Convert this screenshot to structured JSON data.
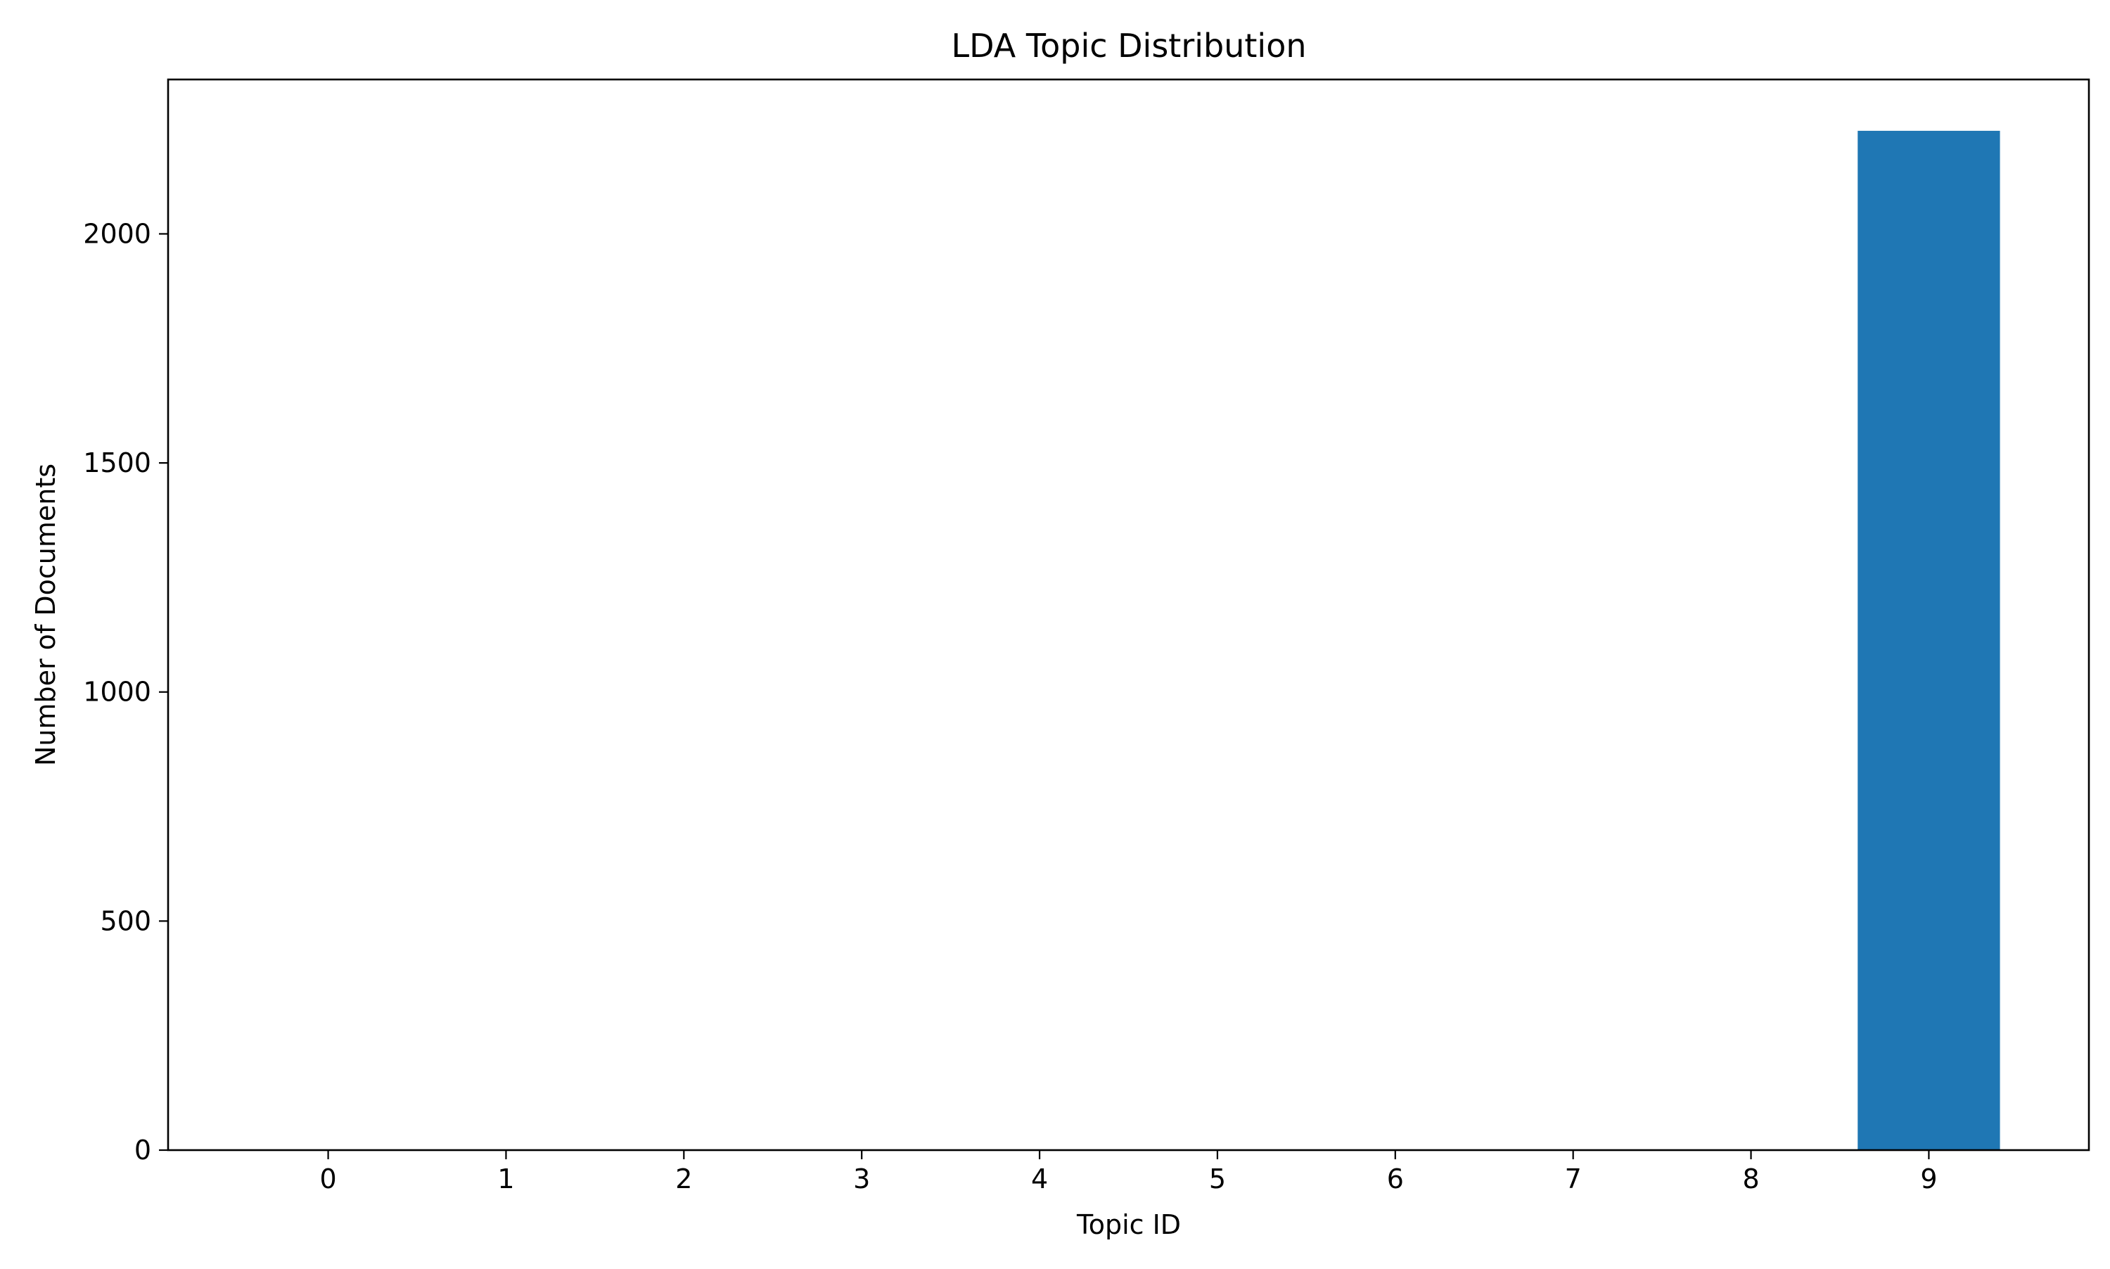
{
  "chart_data": {
    "type": "bar",
    "title": "LDA Topic Distribution",
    "xlabel": "Topic ID",
    "ylabel": "Number of Documents",
    "categories": [
      "0",
      "1",
      "2",
      "3",
      "4",
      "5",
      "6",
      "7",
      "8",
      "9"
    ],
    "values": [
      0,
      0,
      0,
      0,
      0,
      0,
      0,
      0,
      0,
      2225
    ],
    "ylim": [
      0,
      2337
    ],
    "yticks": [
      0,
      500,
      1000,
      1500,
      2000
    ],
    "bar_color": "#1f77b4",
    "grid": false,
    "legend": "none"
  }
}
